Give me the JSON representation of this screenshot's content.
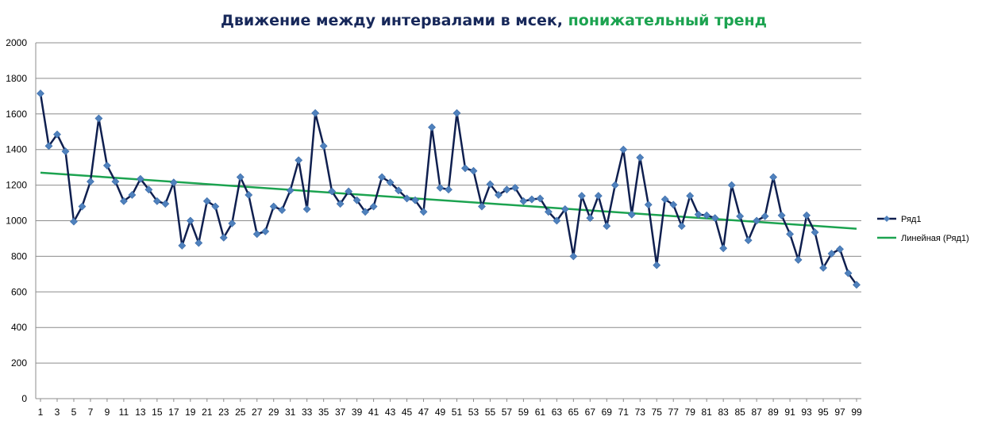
{
  "chart_data": {
    "type": "line",
    "title_part1": "Движение между интервалами в мсек, ",
    "title_part2": "понижательный тренд",
    "xlabel": "",
    "ylabel": "",
    "ylim": [
      0,
      2000
    ],
    "yticks": [
      0,
      200,
      400,
      600,
      800,
      1000,
      1200,
      1400,
      1600,
      1800,
      2000
    ],
    "xticks": [
      1,
      3,
      5,
      7,
      9,
      11,
      13,
      15,
      17,
      19,
      21,
      23,
      25,
      27,
      29,
      31,
      33,
      35,
      37,
      39,
      41,
      43,
      45,
      47,
      49,
      51,
      53,
      55,
      57,
      59,
      61,
      63,
      65,
      67,
      69,
      71,
      73,
      75,
      77,
      79,
      81,
      83,
      85,
      87,
      89,
      91,
      93,
      95,
      97,
      99
    ],
    "grid": true,
    "legend_position": "right",
    "series": [
      {
        "name": "Ряд1",
        "color": "#0f1f4f",
        "marker_color": "#4f81bd",
        "x": [
          1,
          2,
          3,
          4,
          5,
          6,
          7,
          8,
          9,
          10,
          11,
          12,
          13,
          14,
          15,
          16,
          17,
          18,
          19,
          20,
          21,
          22,
          23,
          24,
          25,
          26,
          27,
          28,
          29,
          30,
          31,
          32,
          33,
          34,
          35,
          36,
          37,
          38,
          39,
          40,
          41,
          42,
          43,
          44,
          45,
          46,
          47,
          48,
          49,
          50,
          51,
          52,
          53,
          54,
          55,
          56,
          57,
          58,
          59,
          60,
          61,
          62,
          63,
          64,
          65,
          66,
          67,
          68,
          69,
          70,
          71,
          72,
          73,
          74,
          75,
          76,
          77,
          78,
          79,
          80,
          81,
          82,
          83,
          84,
          85,
          86,
          87,
          88,
          89,
          90,
          91,
          92,
          93,
          94,
          95,
          96,
          97,
          98,
          99
        ],
        "values": [
          1715,
          1420,
          1485,
          1390,
          995,
          1080,
          1220,
          1575,
          1310,
          1220,
          1110,
          1145,
          1235,
          1175,
          1110,
          1095,
          1215,
          860,
          1000,
          875,
          1110,
          1080,
          905,
          985,
          1245,
          1145,
          925,
          940,
          1080,
          1060,
          1170,
          1340,
          1065,
          1605,
          1420,
          1165,
          1095,
          1165,
          1115,
          1050,
          1080,
          1245,
          1215,
          1170,
          1125,
          1115,
          1050,
          1525,
          1185,
          1175,
          1605,
          1295,
          1280,
          1080,
          1205,
          1145,
          1175,
          1185,
          1110,
          1120,
          1125,
          1050,
          1000,
          1065,
          800,
          1140,
          1015,
          1140,
          970,
          1200,
          1400,
          1035,
          1355,
          1090,
          750,
          1120,
          1090,
          970,
          1140,
          1035,
          1030,
          1015,
          845,
          1200,
          1025,
          890,
          1000,
          1025,
          1245,
          1030,
          925,
          780,
          1030,
          935,
          735,
          815,
          840,
          705,
          640
        ]
      },
      {
        "name": "Линейная (Ряд1)",
        "color": "#1ca350",
        "trend": [
          1270,
          955
        ]
      }
    ]
  }
}
